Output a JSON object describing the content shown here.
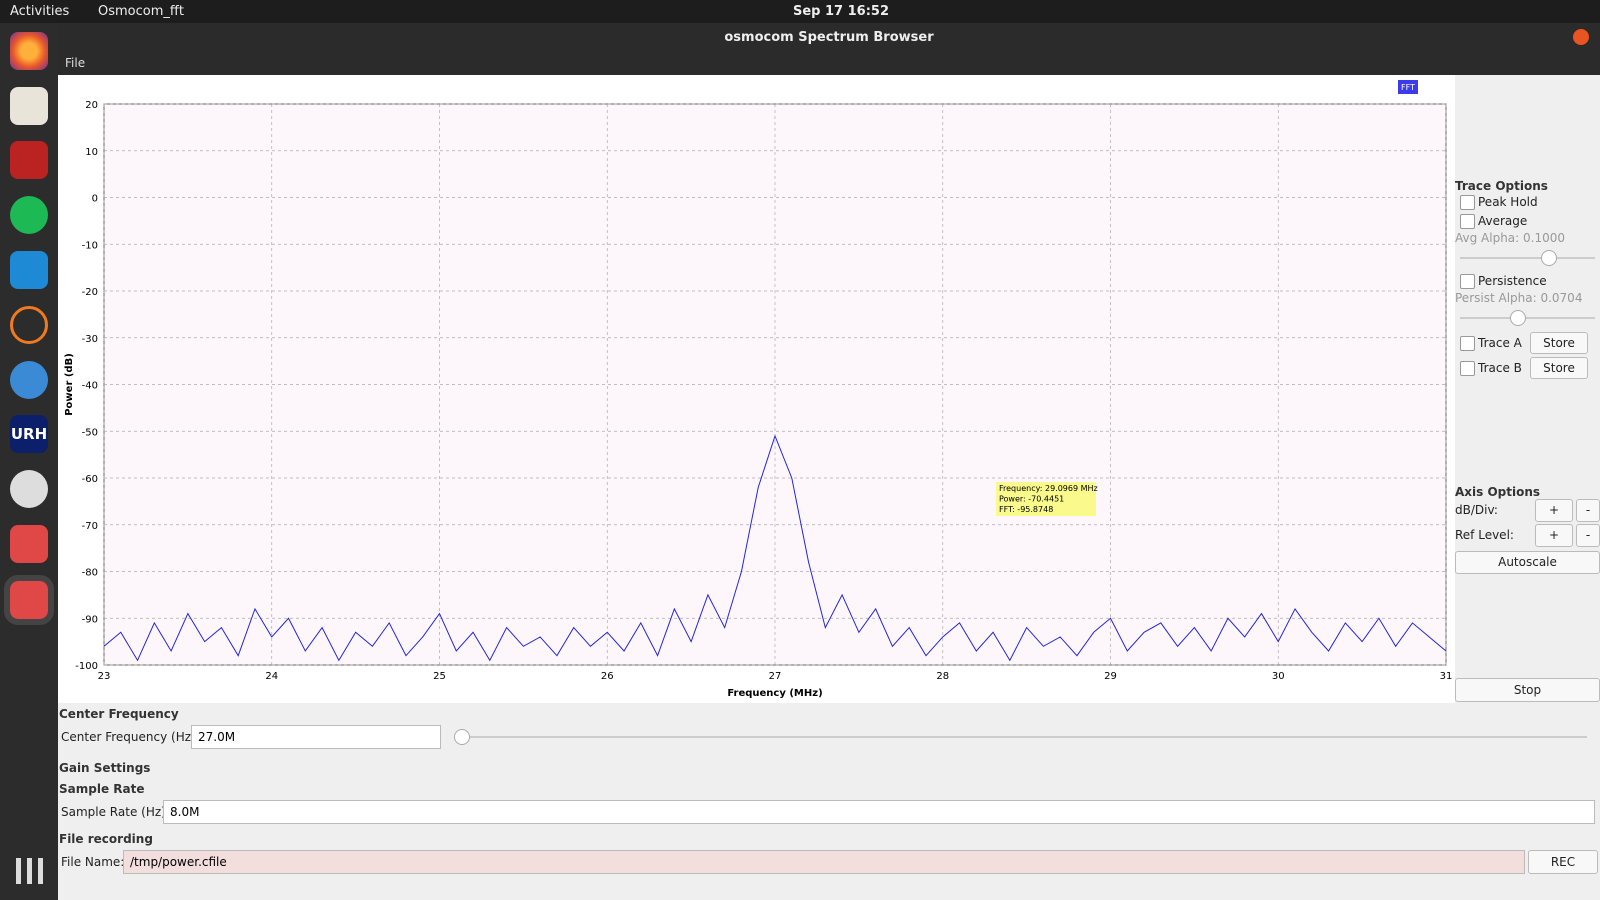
{
  "topbar": {
    "activities": "Activities",
    "app": "Osmocom_fft",
    "clock": "Sep 17  16:52"
  },
  "dock": {
    "urh": "URH"
  },
  "window": {
    "title": "osmocom Spectrum Browser",
    "menu": "File"
  },
  "chart_data": {
    "type": "line",
    "badge": "FFT",
    "x_label": "Frequency (MHz)",
    "y_label": "Power (dB)",
    "xlim": [
      23,
      31
    ],
    "xticks": [
      23,
      24,
      25,
      26,
      27,
      28,
      29,
      30,
      31
    ],
    "ylim": [
      -100,
      20
    ],
    "yticks": [
      -100,
      -90,
      -80,
      -70,
      -60,
      -50,
      -40,
      -30,
      -20,
      -10,
      0,
      10,
      20
    ],
    "grid": true,
    "x": [
      23.0,
      23.1,
      23.2,
      23.3,
      23.4,
      23.5,
      23.6,
      23.7,
      23.8,
      23.9,
      24.0,
      24.1,
      24.2,
      24.3,
      24.4,
      24.5,
      24.6,
      24.7,
      24.8,
      24.9,
      25.0,
      25.1,
      25.2,
      25.3,
      25.4,
      25.5,
      25.6,
      25.7,
      25.8,
      25.9,
      26.0,
      26.1,
      26.2,
      26.3,
      26.4,
      26.5,
      26.6,
      26.7,
      26.8,
      26.9,
      27.0,
      27.1,
      27.2,
      27.3,
      27.4,
      27.5,
      27.6,
      27.7,
      27.8,
      27.9,
      28.0,
      28.1,
      28.2,
      28.3,
      28.4,
      28.5,
      28.6,
      28.7,
      28.8,
      28.9,
      29.0,
      29.1,
      29.2,
      29.3,
      29.4,
      29.5,
      29.6,
      29.7,
      29.8,
      29.9,
      30.0,
      30.1,
      30.2,
      30.3,
      30.4,
      30.5,
      30.6,
      30.7,
      30.8,
      30.9,
      31.0
    ],
    "series": [
      {
        "color": "#2424e0",
        "values": [
          -96,
          -93,
          -99,
          -91,
          -97,
          -89,
          -95,
          -92,
          -98,
          -88,
          -94,
          -90,
          -97,
          -92,
          -99,
          -93,
          -96,
          -91,
          -98,
          -94,
          -89,
          -97,
          -93,
          -99,
          -92,
          -96,
          -94,
          -98,
          -92,
          -96,
          -93,
          -97,
          -91,
          -98,
          -88,
          -95,
          -85,
          -92,
          -80,
          -62,
          -51,
          -60,
          -78,
          -92,
          -85,
          -93,
          -88,
          -96,
          -92,
          -98,
          -94,
          -91,
          -97,
          -93,
          -99,
          -92,
          -96,
          -94,
          -98,
          -93,
          -90,
          -97,
          -93,
          -91,
          -96,
          -92,
          -97,
          -90,
          -94,
          -89,
          -95,
          -88,
          -93,
          -97,
          -91,
          -95,
          -90,
          -96,
          -91,
          -94,
          -97
        ]
      }
    ],
    "tooltip": [
      "Frequency: 29.0969 MHz",
      "Power: -70.4451",
      "FFT: -95.8748"
    ]
  },
  "trace_options": {
    "title": "Trace Options",
    "peak_hold": "Peak Hold",
    "average": "Average",
    "avg_alpha": "Avg Alpha: 0.1000",
    "persistence": "Persistence",
    "persist_alpha": "Persist Alpha: 0.0704",
    "trace_a": "Trace A",
    "store_a": "Store",
    "trace_b": "Trace B",
    "store_b": "Store"
  },
  "axis_options": {
    "title": "Axis Options",
    "db_div": "dB/Div:",
    "db_plus": "+",
    "db_minus": "-",
    "ref_level": "Ref Level:",
    "ref_plus": "+",
    "ref_minus": "-",
    "autoscale": "Autoscale",
    "stop": "Stop"
  },
  "bottom": {
    "center_title": "Center Frequency",
    "center_label": "Center Frequency (Hz):",
    "center_value": "27.0M",
    "gain_title": "Gain Settings",
    "rate_title": "Sample Rate",
    "rate_label": "Sample Rate (Hz):",
    "rate_value": "8.0M",
    "file_title": "File recording",
    "file_label": "File Name:",
    "file_value": "/tmp/power.cfile",
    "rec": "REC"
  }
}
